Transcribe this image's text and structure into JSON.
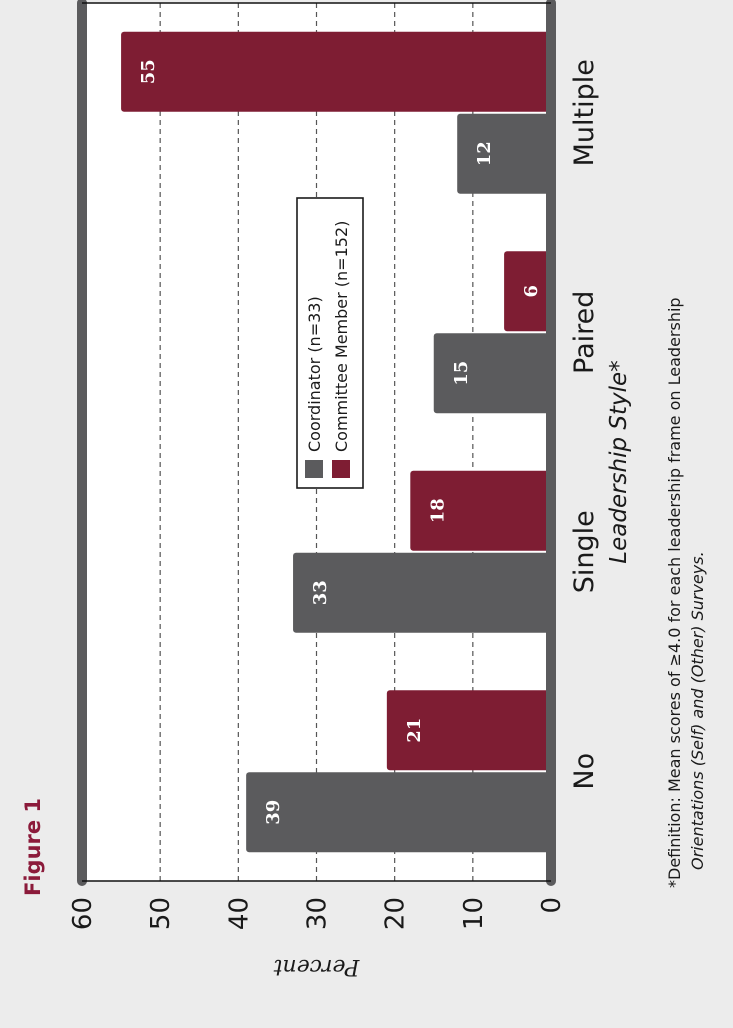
{
  "figure_label": "Figure 1",
  "colors": {
    "coordinator": "#5b5b5d",
    "committee": "#7e1d33",
    "figure_label": "#8b1a3a",
    "frame": "#5b5b5d",
    "background": "#ececec",
    "plot_background": "#ffffff"
  },
  "orientation": "rotated 90 degrees counter-clockwise",
  "chart_data": {
    "type": "bar",
    "categories": [
      "No",
      "Single",
      "Paired",
      "Multiple"
    ],
    "series": [
      {
        "name": "Coordinator (n=33)",
        "values": [
          39,
          33,
          15,
          12
        ]
      },
      {
        "name": "Committee Member (n=152)",
        "values": [
          21,
          18,
          6,
          55
        ]
      }
    ],
    "xlabel": "Leadership Style*",
    "ylabel": "Percent",
    "ylim": [
      0,
      60
    ],
    "yticks": [
      0,
      10,
      20,
      30,
      40,
      50,
      60
    ],
    "grid": "dashed horizontal",
    "data_labels": true,
    "legend_position": "top-right"
  },
  "footnote": {
    "line1": "*Definition: Mean scores of ≥4.0 for each leadership frame on Leadership",
    "line2": "Orientations (Self) and (Other) Surveys."
  }
}
